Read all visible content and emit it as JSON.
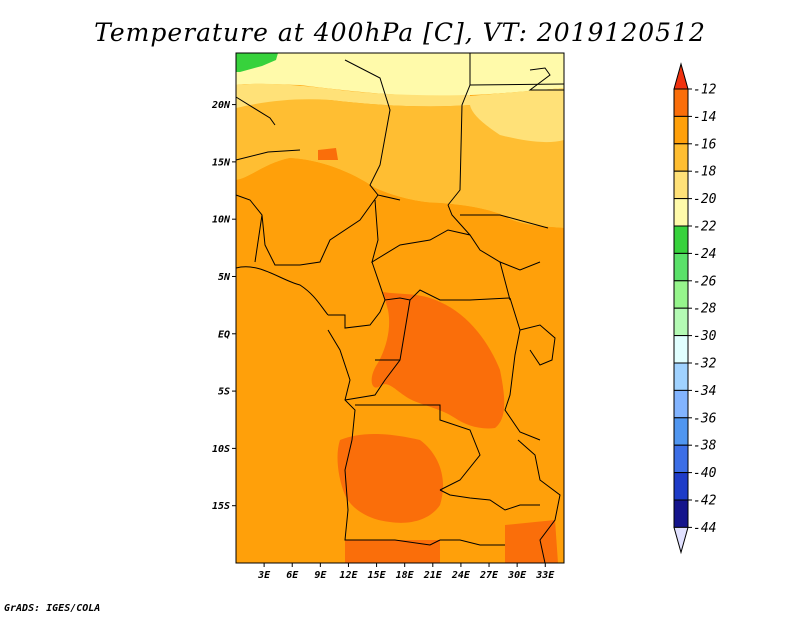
{
  "title": "Temperature at 400hPa [C], VT: 2019120512",
  "credit": "GrADS: IGES/COLA",
  "map": {
    "lat_labels": [
      "20N",
      "15N",
      "10N",
      "5N",
      "EQ",
      "5S",
      "10S",
      "15S"
    ],
    "lat_values": [
      20,
      15,
      10,
      5,
      0,
      -5,
      -10,
      -15
    ],
    "lon_labels": [
      "3E",
      "6E",
      "9E",
      "12E",
      "15E",
      "18E",
      "21E",
      "24E",
      "27E",
      "30E",
      "33E"
    ],
    "lon_values": [
      3,
      6,
      9,
      12,
      15,
      18,
      21,
      24,
      27,
      30,
      33
    ],
    "lon_range": [
      0,
      35
    ],
    "lat_range": [
      -20,
      24.5
    ]
  },
  "colorbar": {
    "labels": [
      "-12",
      "-14",
      "-16",
      "-18",
      "-20",
      "-22",
      "-24",
      "-26",
      "-28",
      "-30",
      "-32",
      "-34",
      "-36",
      "-38",
      "-40",
      "-42",
      "-44"
    ],
    "colors": [
      "#f0320f",
      "#fa6e0a",
      "#ffa00a",
      "#ffbe32",
      "#ffe178",
      "#fffaaa",
      "#37d23c",
      "#5ae169",
      "#96f58c",
      "#b4fab4",
      "#e1ffff",
      "#a0d2ff",
      "#82b4ff",
      "#5096f0",
      "#3c6ee6",
      "#1e3cc8",
      "#14148c",
      "#e1e1ff"
    ]
  }
}
